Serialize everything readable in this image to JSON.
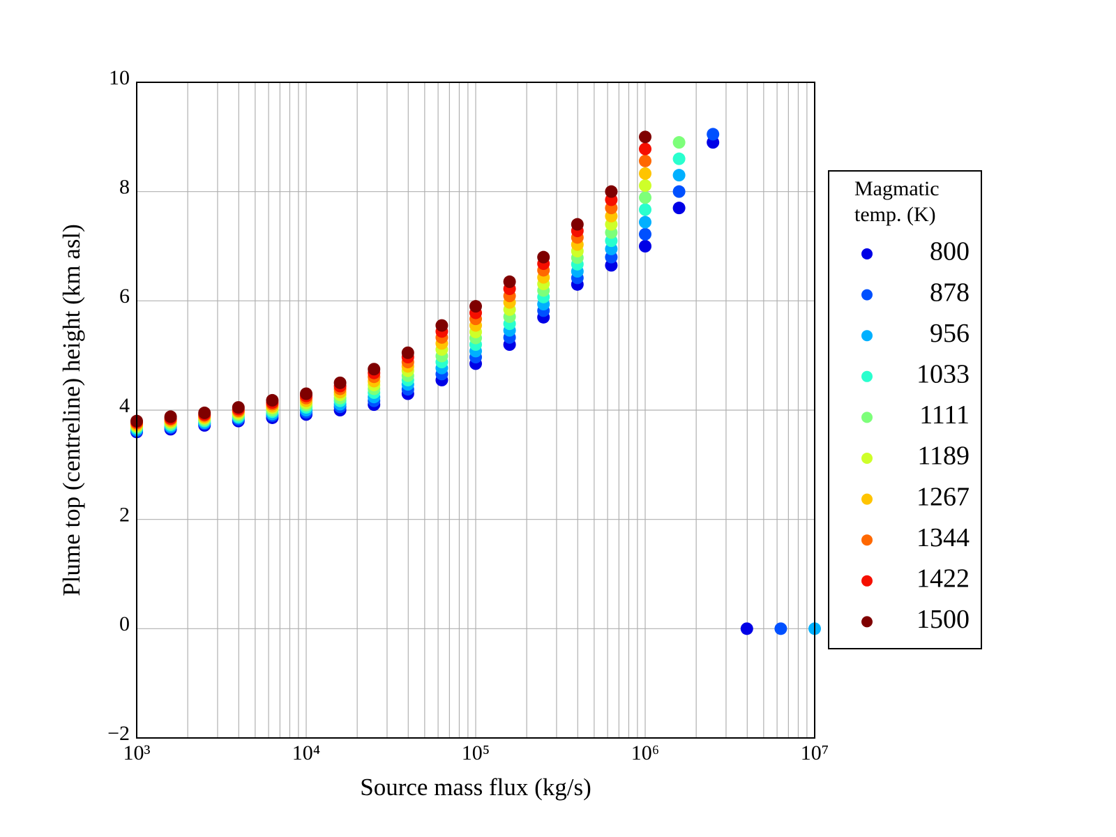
{
  "chart_data": {
    "type": "scatter",
    "xlabel": "Source mass flux (kg/s)",
    "ylabel": "Plume top (centreline) height (km asl)",
    "xscale": "log",
    "grid": true,
    "legend_position": "right",
    "legend_title": [
      "Magmatic",
      "temp. (K)"
    ],
    "xlim": [
      1000,
      10000000
    ],
    "ylim": [
      -2,
      10
    ],
    "xticks": [
      {
        "value": 1000,
        "label": "10³"
      },
      {
        "value": 10000,
        "label": "10⁴"
      },
      {
        "value": 100000,
        "label": "10⁵"
      },
      {
        "value": 1000000,
        "label": "10⁶"
      },
      {
        "value": 10000000,
        "label": "10⁷"
      }
    ],
    "xminorticks": [
      2000,
      3000,
      4000,
      5000,
      6000,
      7000,
      8000,
      9000,
      20000,
      30000,
      40000,
      50000,
      60000,
      70000,
      80000,
      90000,
      200000,
      300000,
      400000,
      500000,
      600000,
      700000,
      800000,
      900000,
      2000000,
      3000000,
      4000000,
      5000000,
      6000000,
      7000000,
      8000000,
      9000000
    ],
    "yticks": [
      {
        "value": -2,
        "label": "−2"
      },
      0,
      2,
      4,
      6,
      8,
      10
    ],
    "x": [
      1000,
      1585,
      2512,
      3981,
      6310,
      10000,
      15849,
      25119,
      39811,
      63096,
      100000,
      158489,
      251189,
      398107,
      630957,
      1000000,
      1584893,
      2511886,
      3981072,
      6309573,
      10000000
    ],
    "series": [
      {
        "name": "800",
        "color": "#0000e6",
        "values": [
          3.6,
          3.65,
          3.72,
          3.8,
          3.86,
          3.92,
          4.0,
          4.1,
          4.3,
          4.55,
          4.85,
          5.2,
          5.7,
          6.3,
          6.65,
          7.0,
          7.7,
          8.9,
          0,
          null,
          null
        ]
      },
      {
        "name": "878",
        "color": "#0050ff",
        "values": [
          3.62,
          3.68,
          3.75,
          3.83,
          3.9,
          3.96,
          4.06,
          4.17,
          4.38,
          4.66,
          4.97,
          5.33,
          5.82,
          6.42,
          6.8,
          7.22,
          8.0,
          9.05,
          null,
          0,
          null
        ]
      },
      {
        "name": "956",
        "color": "#00b0ff",
        "values": [
          3.64,
          3.7,
          3.77,
          3.86,
          3.93,
          4.0,
          4.11,
          4.24,
          4.47,
          4.77,
          5.08,
          5.46,
          5.94,
          6.54,
          6.95,
          7.44,
          8.3,
          null,
          null,
          null,
          0
        ]
      },
      {
        "name": "1033",
        "color": "#29ffce",
        "values": [
          3.67,
          3.73,
          3.8,
          3.88,
          3.97,
          4.05,
          4.17,
          4.32,
          4.55,
          4.88,
          5.2,
          5.58,
          6.07,
          6.67,
          7.1,
          7.67,
          8.6,
          null,
          null,
          null,
          null
        ]
      },
      {
        "name": "1111",
        "color": "#7dff7a",
        "values": [
          3.69,
          3.75,
          3.82,
          3.91,
          4.0,
          4.09,
          4.22,
          4.39,
          4.63,
          4.99,
          5.32,
          5.71,
          6.19,
          6.79,
          7.25,
          7.89,
          8.9,
          null,
          null,
          null,
          null
        ]
      },
      {
        "name": "1189",
        "color": "#ceff29",
        "values": [
          3.71,
          3.78,
          3.85,
          3.94,
          4.04,
          4.13,
          4.28,
          4.46,
          4.72,
          5.11,
          5.43,
          5.84,
          6.31,
          6.91,
          7.4,
          8.11,
          null,
          null,
          null,
          null,
          null
        ]
      },
      {
        "name": "1267",
        "color": "#ffc400",
        "values": [
          3.73,
          3.8,
          3.87,
          3.97,
          4.07,
          4.17,
          4.33,
          4.53,
          4.8,
          5.22,
          5.55,
          5.97,
          6.43,
          7.03,
          7.55,
          8.33,
          null,
          null,
          null,
          null,
          null
        ]
      },
      {
        "name": "1344",
        "color": "#ff6800",
        "values": [
          3.76,
          3.83,
          3.9,
          3.99,
          4.11,
          4.22,
          4.39,
          4.61,
          4.88,
          5.33,
          5.67,
          6.09,
          6.56,
          7.16,
          7.7,
          8.56,
          null,
          null,
          null,
          null,
          null
        ]
      },
      {
        "name": "1422",
        "color": "#f50f00",
        "values": [
          3.78,
          3.85,
          3.92,
          4.02,
          4.14,
          4.26,
          4.44,
          4.68,
          4.97,
          5.44,
          5.78,
          6.22,
          6.68,
          7.28,
          7.85,
          8.78,
          null,
          null,
          null,
          null,
          null
        ]
      },
      {
        "name": "1500",
        "color": "#7f0000",
        "values": [
          3.8,
          3.88,
          3.95,
          4.05,
          4.18,
          4.3,
          4.5,
          4.75,
          5.05,
          5.55,
          5.9,
          6.35,
          6.8,
          7.4,
          8.0,
          9.0,
          null,
          null,
          null,
          null,
          null
        ]
      }
    ]
  }
}
